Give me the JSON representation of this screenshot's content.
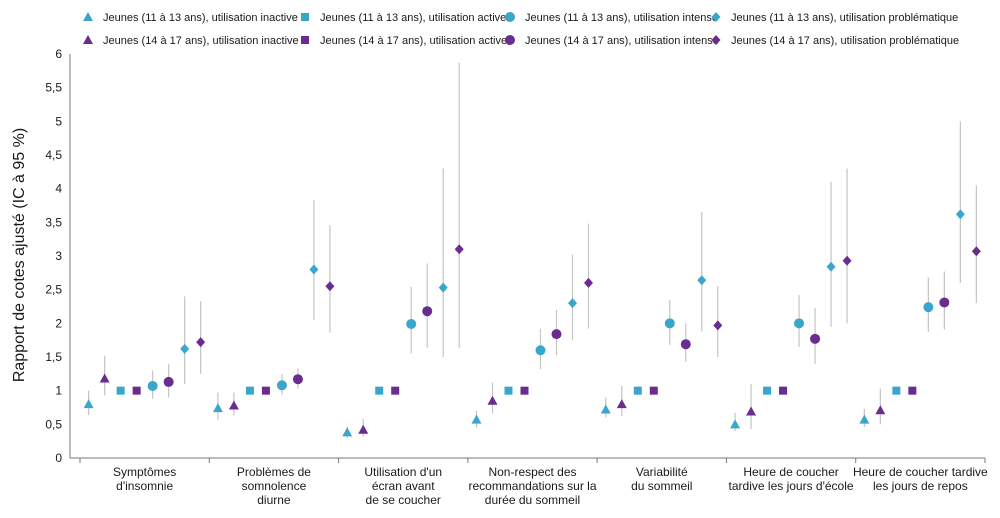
{
  "chart_data": {
    "type": "scatter",
    "ylabel": "Rapport de cotes ajusté (IC à 95 %)",
    "xlabel": "",
    "ylim": [
      0,
      6
    ],
    "yticks": [
      0,
      0.5,
      1,
      1.5,
      2,
      2.5,
      3,
      3.5,
      4,
      4.5,
      5,
      5.5,
      6
    ],
    "ytick_labels": [
      "0",
      "0,5",
      "1",
      "1,5",
      "2",
      "2,5",
      "3",
      "3,5",
      "4",
      "4,5",
      "5",
      "5,5",
      "6"
    ],
    "grid": false,
    "legend_position": "top",
    "colors": {
      "teal": "#3aa6cc",
      "purple": "#6a2c8e",
      "whisker": "#c4c4c4",
      "axis": "#7a7a7a"
    },
    "categories": [
      [
        "Symptômes",
        "d'insomnie"
      ],
      [
        "Problèmes de",
        "somnolence",
        "diurne"
      ],
      [
        "Utilisation d'un",
        "écran avant",
        "de se coucher"
      ],
      [
        "Non-respect des",
        "recommandations sur la",
        "durée du sommeil"
      ],
      [
        "Variabilité",
        "du sommeil"
      ],
      [
        "Heure de coucher",
        "tardive les jours d'école"
      ],
      [
        "Heure de coucher tardive",
        "les jours de repos"
      ]
    ],
    "series": [
      {
        "name": "Jeunes (11 à 13 ans), utilisation inactive",
        "shape": "triangle",
        "color": "#3aa6cc",
        "values": [
          0.8,
          0.74,
          0.38,
          0.57,
          0.72,
          0.5,
          0.57
        ],
        "ci_low": [
          0.64,
          0.57,
          0.3,
          0.45,
          0.6,
          0.4,
          0.46
        ],
        "ci_high": [
          1.0,
          0.97,
          0.47,
          0.7,
          0.9,
          0.67,
          0.73
        ]
      },
      {
        "name": "Jeunes (14 à 17 ans), utilisation inactive",
        "shape": "triangle",
        "color": "#6a2c8e",
        "values": [
          1.18,
          0.78,
          0.42,
          0.85,
          0.8,
          0.69,
          0.71
        ],
        "ci_low": [
          0.93,
          0.63,
          0.32,
          0.66,
          0.62,
          0.43,
          0.5
        ],
        "ci_high": [
          1.52,
          0.97,
          0.58,
          1.12,
          1.07,
          1.1,
          1.03
        ]
      },
      {
        "name": "Jeunes (11 à 13 ans), utilisation active",
        "shape": "square",
        "color": "#3aa6cc",
        "values": [
          1,
          1,
          1,
          1,
          1,
          1,
          1
        ],
        "ci_low": [
          1,
          1,
          1,
          1,
          1,
          1,
          1
        ],
        "ci_high": [
          1,
          1,
          1,
          1,
          1,
          1,
          1
        ]
      },
      {
        "name": "Jeunes (14 à 17 ans), utilisation active",
        "shape": "square",
        "color": "#6a2c8e",
        "values": [
          1,
          1,
          1,
          1,
          1,
          1,
          1
        ],
        "ci_low": [
          1,
          1,
          1,
          1,
          1,
          1,
          1
        ],
        "ci_high": [
          1,
          1,
          1,
          1,
          1,
          1,
          1
        ]
      },
      {
        "name": "Jeunes (11 à 13 ans), utilisation intense",
        "shape": "circle",
        "color": "#3aa6cc",
        "values": [
          1.07,
          1.08,
          1.99,
          1.6,
          2.0,
          2.0,
          2.24
        ],
        "ci_low": [
          0.88,
          0.94,
          1.55,
          1.32,
          1.68,
          1.65,
          1.87
        ],
        "ci_high": [
          1.3,
          1.25,
          2.54,
          1.92,
          2.35,
          2.42,
          2.68
        ]
      },
      {
        "name": "Jeunes (14 à 17 ans), utilisation intense",
        "shape": "circle",
        "color": "#6a2c8e",
        "values": [
          1.13,
          1.17,
          2.18,
          1.84,
          1.69,
          1.77,
          2.31
        ],
        "ci_low": [
          0.9,
          1.03,
          1.64,
          1.53,
          1.43,
          1.4,
          1.91
        ],
        "ci_high": [
          1.4,
          1.33,
          2.89,
          2.2,
          2.0,
          2.23,
          2.77
        ]
      },
      {
        "name": "Jeunes (11 à 13 ans), utilisation problématique",
        "shape": "diamond",
        "color": "#3aa6cc",
        "values": [
          1.62,
          2.8,
          2.53,
          2.3,
          2.64,
          2.84,
          3.62
        ],
        "ci_low": [
          1.1,
          2.05,
          1.5,
          1.75,
          1.88,
          1.95,
          2.6
        ],
        "ci_high": [
          2.4,
          3.83,
          4.3,
          3.02,
          3.65,
          4.1,
          5.0
        ]
      },
      {
        "name": "Jeunes (14 à 17 ans), utilisation problématique",
        "shape": "diamond",
        "color": "#6a2c8e",
        "values": [
          1.72,
          2.55,
          3.1,
          2.6,
          1.97,
          2.93,
          3.07
        ],
        "ci_low": [
          1.25,
          1.86,
          1.63,
          1.92,
          1.5,
          2.0,
          2.3
        ],
        "ci_high": [
          2.33,
          3.46,
          5.87,
          3.48,
          2.55,
          4.3,
          4.05
        ]
      }
    ],
    "legend_order": [
      0,
      2,
      4,
      6,
      1,
      3,
      5,
      7
    ],
    "plot_order": [
      0,
      1,
      2,
      3,
      4,
      5,
      6,
      7
    ]
  }
}
